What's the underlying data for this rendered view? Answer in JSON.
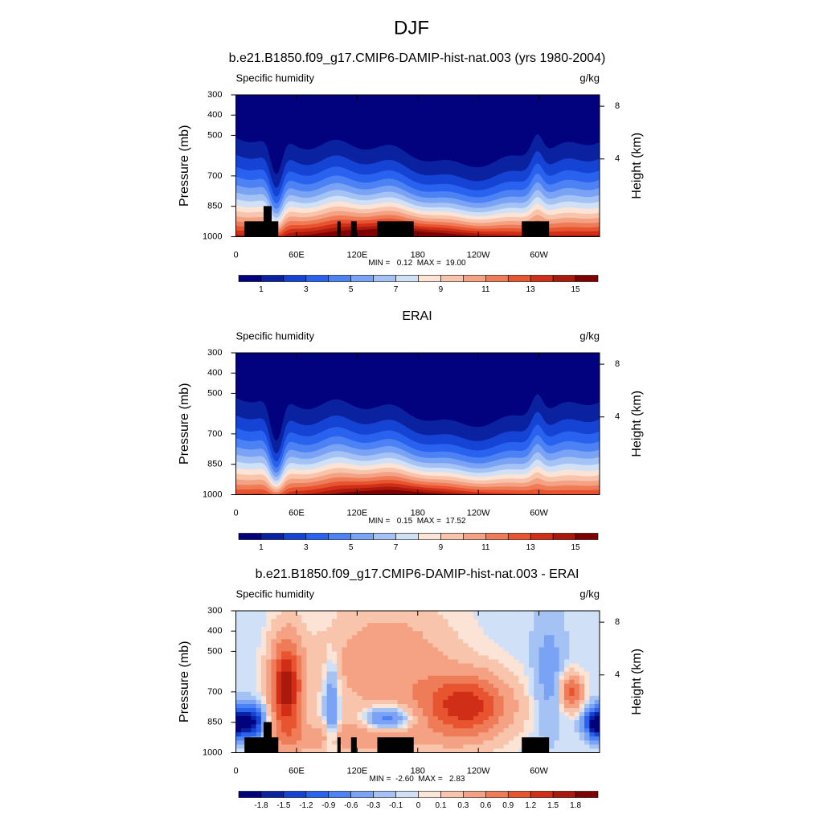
{
  "title": "DJF",
  "panels": [
    {
      "title": "b.e21.B1850.f09_g17.CMIP6-DAMIP-hist-nat.003 (yrs 1980-2004)",
      "left_label": "Specific humidity",
      "right_label": "g/kg",
      "y_label": "Pressure (mb)",
      "y2_label": "Height (km)",
      "xlim": [
        0,
        360
      ],
      "xticks": [
        0,
        {
          "value": 60,
          "label": "60E"
        },
        {
          "value": 120,
          "label": "120E"
        },
        180,
        {
          "value": 240,
          "label": "120W"
        },
        {
          "value": 300,
          "label": "60W"
        }
      ],
      "ylim": [
        300,
        1000
      ],
      "yticks": [
        300,
        400,
        500,
        700,
        850,
        1000
      ],
      "y2ticks": [
        4,
        8
      ],
      "stats": "MIN =   0.12  MAX =  19.00",
      "colorbar": {
        "colors": [
          "#02027e",
          "#0a22a0",
          "#1543d4",
          "#2962ef",
          "#4d82f5",
          "#7aa3f5",
          "#a4c2f4",
          "#cfe0f7",
          "#fbe3d6",
          "#f8c4ab",
          "#f4a283",
          "#ef7c59",
          "#e85430",
          "#d02e17",
          "#aa1a0c",
          "#7f0000"
        ],
        "levels": [
          1,
          3,
          5,
          7,
          9,
          11,
          13,
          15
        ],
        "lim": [
          0,
          16
        ]
      }
    },
    {
      "title": "ERAI",
      "left_label": "Specific humidity",
      "right_label": "g/kg",
      "y_label": "Pressure (mb)",
      "y2_label": "Height (km)",
      "xlim": [
        0,
        360
      ],
      "xticks": [
        0,
        {
          "value": 60,
          "label": "60E"
        },
        {
          "value": 120,
          "label": "120E"
        },
        180,
        {
          "value": 240,
          "label": "120W"
        },
        {
          "value": 300,
          "label": "60W"
        }
      ],
      "ylim": [
        300,
        1000
      ],
      "yticks": [
        300,
        400,
        500,
        700,
        850,
        1000
      ],
      "y2ticks": [
        4,
        8
      ],
      "stats": "MIN =   0.15  MAX =  17.52",
      "colorbar": {
        "colors": [
          "#02027e",
          "#0a22a0",
          "#1543d4",
          "#2962ef",
          "#4d82f5",
          "#7aa3f5",
          "#a4c2f4",
          "#cfe0f7",
          "#fbe3d6",
          "#f8c4ab",
          "#f4a283",
          "#ef7c59",
          "#e85430",
          "#d02e17",
          "#aa1a0c",
          "#7f0000"
        ],
        "levels": [
          1,
          3,
          5,
          7,
          9,
          11,
          13,
          15
        ],
        "lim": [
          0,
          16
        ]
      }
    },
    {
      "title": "b.e21.B1850.f09_g17.CMIP6-DAMIP-hist-nat.003 - ERAI",
      "left_label": "Specific humidity",
      "right_label": "g/kg",
      "y_label": "Pressure (mb)",
      "y2_label": "Height (km)",
      "xlim": [
        0,
        360
      ],
      "xticks": [
        0,
        {
          "value": 60,
          "label": "60E"
        },
        {
          "value": 120,
          "label": "120E"
        },
        180,
        {
          "value": 240,
          "label": "120W"
        },
        {
          "value": 300,
          "label": "60W"
        }
      ],
      "ylim": [
        300,
        1000
      ],
      "yticks": [
        300,
        400,
        500,
        700,
        850,
        1000
      ],
      "y2ticks": [
        4,
        8
      ],
      "stats": "MIN =  -2.60  MAX =   2.83",
      "colorbar": {
        "colors": [
          "#02027e",
          "#0a22a0",
          "#1543d4",
          "#2962ef",
          "#4d82f5",
          "#7aa3f5",
          "#a4c2f4",
          "#cfe0f7",
          "#fbe3d6",
          "#f8c4ab",
          "#f4a283",
          "#ef7c59",
          "#e85430",
          "#d02e17",
          "#aa1a0c",
          "#7f0000"
        ],
        "levels": [
          -1.8,
          -1.5,
          -1.2,
          -0.9,
          -0.6,
          -0.3,
          -0.1,
          0,
          0.1,
          0.3,
          0.6,
          0.9,
          1.2,
          1.5,
          1.8
        ]
      }
    }
  ]
}
